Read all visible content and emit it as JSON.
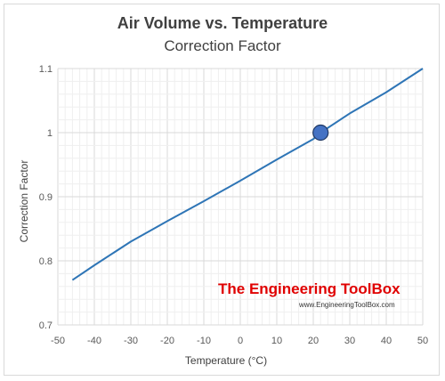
{
  "chart_data": {
    "type": "line",
    "title": "Air Volume vs. Temperature",
    "subtitle": "Correction Factor",
    "xlabel": "Temperature (°C)",
    "ylabel": "Correction Factor",
    "xlim": [
      -50,
      50
    ],
    "ylim": [
      0.7,
      1.1
    ],
    "x_ticks": [
      "-50",
      "-40",
      "-30",
      "-20",
      "-10",
      "0",
      "10",
      "20",
      "30",
      "40",
      "50"
    ],
    "y_ticks": [
      "0.7",
      "0.8",
      "0.9",
      "1",
      "1.1"
    ],
    "grid": true,
    "series_color": "#2e75b6",
    "marker_color": "#4472c4",
    "series": [
      {
        "x": [
          -46,
          -40,
          -30,
          -20,
          -10,
          0,
          10,
          20,
          22,
          30,
          40,
          50
        ],
        "y": [
          0.77,
          0.793,
          0.83,
          0.862,
          0.893,
          0.925,
          0.958,
          0.99,
          1.0,
          1.03,
          1.063,
          1.1
        ]
      }
    ],
    "highlight_point": {
      "x": 22,
      "y": 1.0
    }
  },
  "watermark": {
    "title": "The Engineering ToolBox",
    "url": "www.EngineeringToolBox.com"
  }
}
